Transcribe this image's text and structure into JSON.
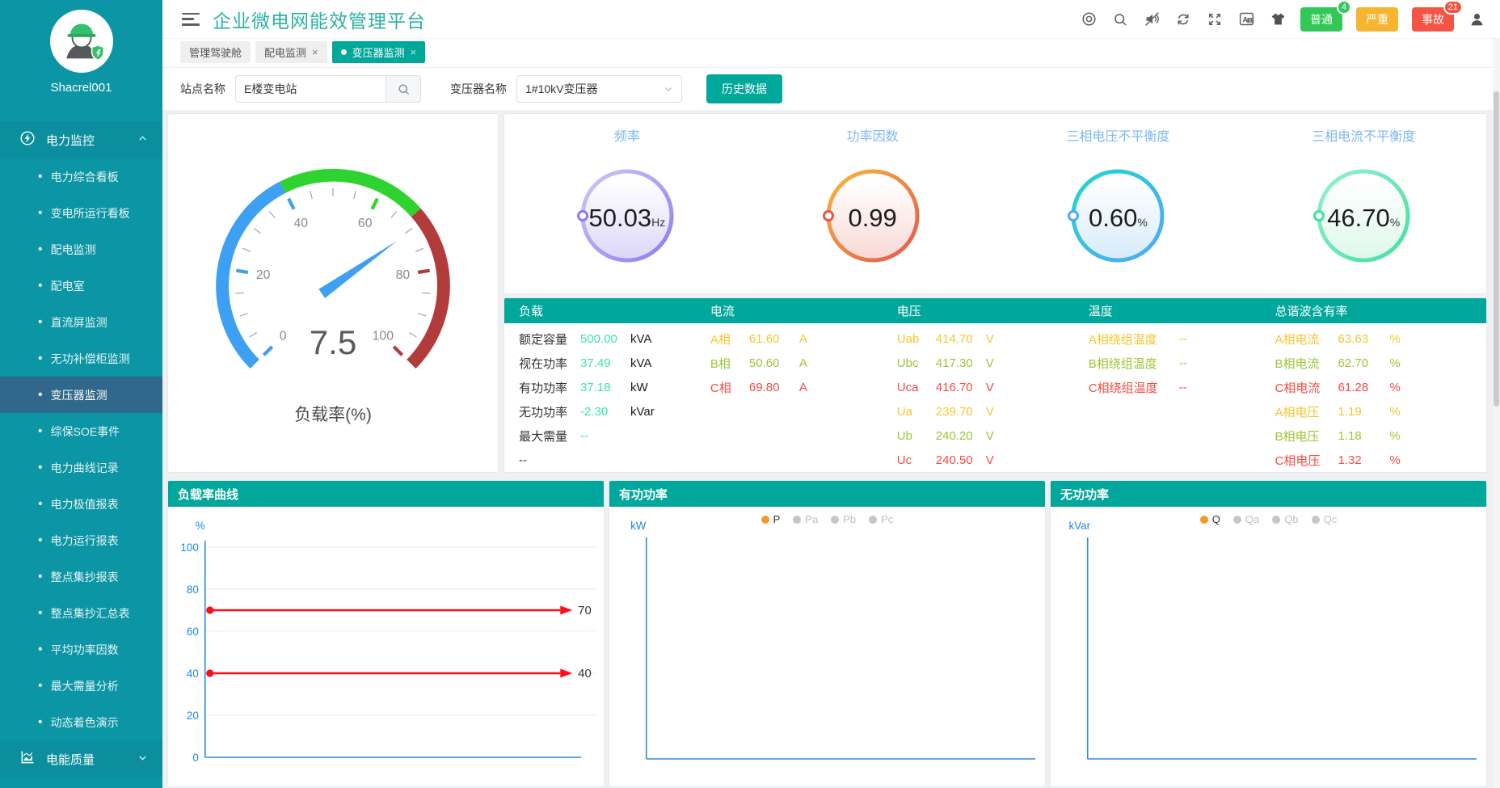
{
  "app": {
    "title": "企业微电网能效管理平台"
  },
  "sidebar": {
    "username": "Shacrel001",
    "sections": [
      {
        "label": "电力监控",
        "icon": "power-monitor-icon",
        "expanded": true,
        "active_item": "变压器监测",
        "items": [
          "电力综合看板",
          "变电所运行看板",
          "配电监测",
          "配电室",
          "直流屏监测",
          "无功补偿柜监测",
          "变压器监测",
          "综保SOE事件",
          "电力曲线记录",
          "电力极值报表",
          "电力运行报表",
          "整点集抄报表",
          "整点集抄汇总表",
          "平均功率因数",
          "最大需量分析",
          "动态着色演示"
        ]
      },
      {
        "label": "电能质量",
        "icon": "power-quality-icon",
        "expanded": false,
        "items": []
      }
    ]
  },
  "header": {
    "icons": [
      "screen-icon",
      "search-icon",
      "mute-icon",
      "refresh-icon",
      "fullscreen-icon",
      "translate-icon",
      "theme-icon"
    ],
    "alarms": [
      {
        "label": "普通",
        "badge": "4",
        "type": "normal"
      },
      {
        "label": "严重",
        "badge": "",
        "type": "serious"
      },
      {
        "label": "事故",
        "badge": "21",
        "type": "accident"
      }
    ]
  },
  "tabs": [
    {
      "label": "管理驾驶舱",
      "closable": false,
      "active": false
    },
    {
      "label": "配电监测",
      "closable": true,
      "active": false
    },
    {
      "label": "变压器监测",
      "closable": true,
      "active": true
    }
  ],
  "filters": {
    "site_label": "站点名称",
    "site_value": "E楼变电站",
    "transformer_label": "变压器名称",
    "transformer_value": "1#10kV变压器",
    "history_button": "历史数据"
  },
  "table": {
    "value_colors": {
      "mint": "#3BE3AE",
      "phaseA": "#F6C62D",
      "phaseB": "#9DC536",
      "phaseC": "#F34B42",
      "plain": "#3BE3AE"
    },
    "columns": [
      {
        "header": "负载",
        "rows": [
          {
            "label": "额定容量",
            "value": "500.00",
            "unit": "kVA",
            "color": "mint"
          },
          {
            "label": "视在功率",
            "value": "37.49",
            "unit": "kVA",
            "color": "mint"
          },
          {
            "label": "有功功率",
            "value": "37.18",
            "unit": "kW",
            "color": "mint"
          },
          {
            "label": "无功功率",
            "value": "-2.30",
            "unit": "kVar",
            "color": "mint"
          },
          {
            "label": "最大需量",
            "value": "--",
            "unit": "",
            "color": "mint"
          },
          {
            "label": "--",
            "value": "",
            "unit": "",
            "color": "plain"
          }
        ]
      },
      {
        "header": "电流",
        "rows": [
          {
            "label": "A相",
            "value": "61.60",
            "unit": "A",
            "color": "phaseA",
            "tint_all": true
          },
          {
            "label": "B相",
            "value": "50.60",
            "unit": "A",
            "color": "phaseB",
            "tint_all": true
          },
          {
            "label": "C相",
            "value": "69.80",
            "unit": "A",
            "color": "phaseC",
            "tint_all": true
          }
        ]
      },
      {
        "header": "电压",
        "rows": [
          {
            "label": "Uab",
            "value": "414.70",
            "unit": "V",
            "color": "phaseA",
            "tint_all": true
          },
          {
            "label": "Ubc",
            "value": "417.30",
            "unit": "V",
            "color": "phaseB",
            "tint_all": true
          },
          {
            "label": "Uca",
            "value": "416.70",
            "unit": "V",
            "color": "phaseC",
            "tint_all": true
          },
          {
            "label": "Ua",
            "value": "239.70",
            "unit": "V",
            "color": "phaseA",
            "tint_all": true
          },
          {
            "label": "Ub",
            "value": "240.20",
            "unit": "V",
            "color": "phaseB",
            "tint_all": true
          },
          {
            "label": "Uc",
            "value": "240.50",
            "unit": "V",
            "color": "phaseC",
            "tint_all": true
          }
        ]
      },
      {
        "header": "温度",
        "rows": [
          {
            "label": "A相绕组温度",
            "value": "--",
            "unit": "",
            "color": "phaseA",
            "tint_all": true
          },
          {
            "label": "B相绕组温度",
            "value": "--",
            "unit": "",
            "color": "phaseB",
            "tint_all": true
          },
          {
            "label": "C相绕组温度",
            "value": "--",
            "unit": "",
            "color": "phaseC",
            "tint_all": true
          }
        ]
      },
      {
        "header": "总谐波含有率",
        "rows": [
          {
            "label": "A相电流",
            "value": "63.63",
            "unit": "%",
            "color": "phaseA",
            "tint_all": true
          },
          {
            "label": "B相电流",
            "value": "62.70",
            "unit": "%",
            "color": "phaseB",
            "tint_all": true
          },
          {
            "label": "C相电流",
            "value": "61.28",
            "unit": "%",
            "color": "phaseC",
            "tint_all": true
          },
          {
            "label": "A相电压",
            "value": "1.19",
            "unit": "%",
            "color": "phaseA",
            "tint_all": true
          },
          {
            "label": "B相电压",
            "value": "1.18",
            "unit": "%",
            "color": "phaseB",
            "tint_all": true
          },
          {
            "label": "C相电压",
            "value": "1.32",
            "unit": "%",
            "color": "phaseC",
            "tint_all": true
          }
        ]
      }
    ]
  },
  "chart_data": [
    {
      "type": "gauge",
      "title": "负载率(%)",
      "value": 7.5,
      "min": 0,
      "max": 100,
      "major_ticks": [
        0,
        20,
        40,
        60,
        80,
        100
      ],
      "segments": [
        {
          "upto": 40,
          "color": "#3DA0F2"
        },
        {
          "upto": 68,
          "color": "#2FD32F"
        },
        {
          "upto": 100,
          "color": "#B23B3B"
        }
      ]
    },
    {
      "type": "ring-gauges",
      "items": [
        {
          "title": "频率",
          "value": "50.03",
          "unit": "Hz",
          "color": "#8C7BEF",
          "color2": "#CFC8F7",
          "fill": "#DCD6F8"
        },
        {
          "title": "功率因数",
          "value": "0.99",
          "unit": "",
          "color": "#E4574E",
          "color2": "#F6B83E",
          "fill": "#F8D8D4"
        },
        {
          "title": "三相电压不平衡度",
          "value": "0.60",
          "unit": "%",
          "color": "#53A8F3",
          "color2": "#1ED6CE",
          "fill": "#D6EBFA"
        },
        {
          "title": "三相电流不平衡度",
          "value": "46.70",
          "unit": "%",
          "color": "#41E0A0",
          "color2": "#97F0CE",
          "fill": "#DDF8EC"
        }
      ]
    },
    {
      "type": "line",
      "title": "负载率曲线",
      "ylabel": "%",
      "ylim": [
        0,
        100
      ],
      "yticks": [
        0,
        20,
        40,
        60,
        80,
        100
      ],
      "grid": true,
      "series": [],
      "marklines": [
        {
          "value": 70,
          "label": "70"
        },
        {
          "value": 40,
          "label": "40"
        }
      ],
      "markline_color": "#FB0D1B"
    },
    {
      "type": "line",
      "title": "有功功率",
      "ylabel": "kW",
      "series": [],
      "legend": [
        {
          "label": "P",
          "selected": true
        },
        {
          "label": "Pa",
          "selected": false
        },
        {
          "label": "Pb",
          "selected": false
        },
        {
          "label": "Pc",
          "selected": false
        }
      ],
      "legend_selected_color": "#F59A23"
    },
    {
      "type": "line",
      "title": "无功功率",
      "ylabel": "kVar",
      "series": [],
      "legend": [
        {
          "label": "Q",
          "selected": true
        },
        {
          "label": "Qa",
          "selected": false
        },
        {
          "label": "Qb",
          "selected": false
        },
        {
          "label": "Qc",
          "selected": false
        }
      ],
      "legend_selected_color": "#F59A23"
    }
  ]
}
